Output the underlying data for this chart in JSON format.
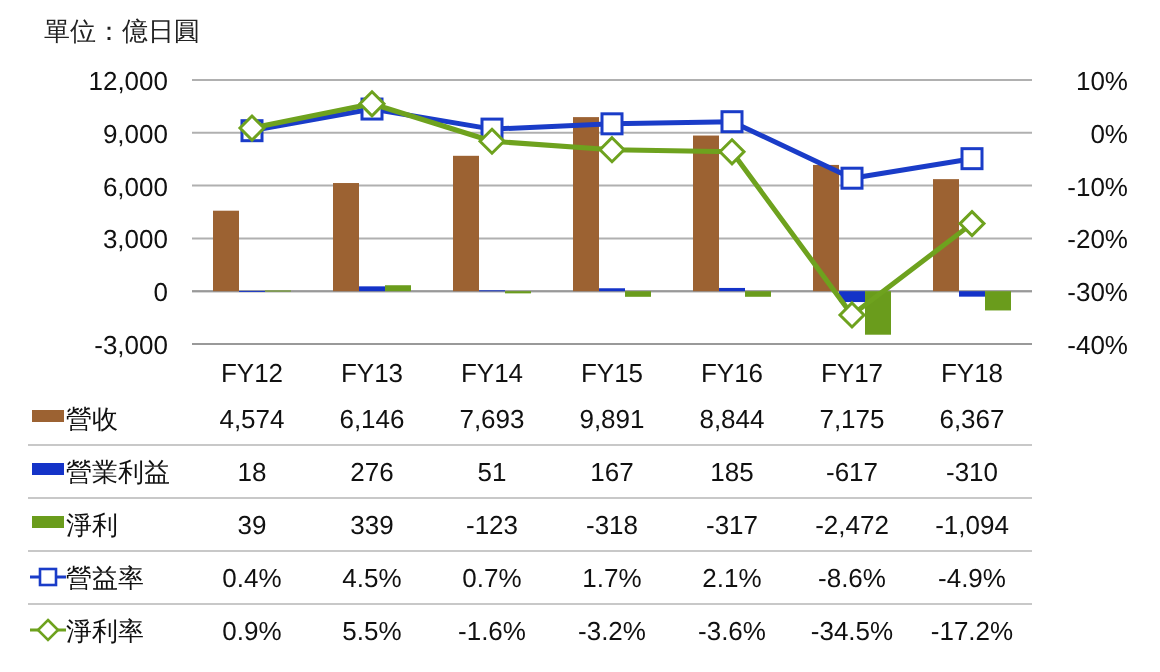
{
  "chart_data": {
    "type": "bar",
    "ylabel": "單位：億日圓",
    "categories": [
      "FY12",
      "FY13",
      "FY14",
      "FY15",
      "FY16",
      "FY17",
      "FY18"
    ],
    "ylim": [
      -3000,
      12000
    ],
    "yticks": [
      {
        "value": -3000,
        "label": "-3,000"
      },
      {
        "value": 0,
        "label": "0"
      },
      {
        "value": 3000,
        "label": "3,000"
      },
      {
        "value": 6000,
        "label": "6,000"
      },
      {
        "value": 9000,
        "label": "9,000"
      },
      {
        "value": 12000,
        "label": "12,000"
      }
    ],
    "y2lim": [
      -40,
      10
    ],
    "y2ticks": [
      {
        "value": -40,
        "label": "-40%"
      },
      {
        "value": -30,
        "label": "-30%"
      },
      {
        "value": -20,
        "label": "-20%"
      },
      {
        "value": -10,
        "label": "-10%"
      },
      {
        "value": 0,
        "label": "0%"
      },
      {
        "value": 10,
        "label": "10%"
      }
    ],
    "grid": "y",
    "legend": "bottom",
    "series": [
      {
        "name": "營收",
        "color": "#9c6232",
        "values": [
          4574,
          6146,
          7693,
          9891,
          8844,
          7175,
          6367
        ],
        "value_labels": [
          "4,574",
          "6,146",
          "7,693",
          "9,891",
          "8,844",
          "7,175",
          "6,367"
        ]
      },
      {
        "name": "營業利益",
        "color": "#1433c8",
        "values": [
          18,
          276,
          51,
          167,
          185,
          -617,
          -310
        ],
        "value_labels": [
          "18",
          "276",
          "51",
          "167",
          "185",
          "-617",
          "-310"
        ]
      },
      {
        "name": "淨利",
        "color": "#6a9c1c",
        "values": [
          39,
          339,
          -123,
          -318,
          -317,
          -2472,
          -1094
        ],
        "value_labels": [
          "39",
          "339",
          "-123",
          "-318",
          "-317",
          "-2,472",
          "-1,094"
        ]
      },
      {
        "name": "營益率",
        "type": "line",
        "axis": "y2",
        "marker": "square",
        "color": "#1a3cc8",
        "values": [
          0.4,
          4.5,
          0.7,
          1.7,
          2.1,
          -8.6,
          -4.9
        ],
        "value_labels": [
          "0.4%",
          "4.5%",
          "0.7%",
          "1.7%",
          "2.1%",
          "-8.6%",
          "-4.9%"
        ]
      },
      {
        "name": "淨利率",
        "type": "line",
        "axis": "y2",
        "marker": "diamond",
        "color": "#6ea21e",
        "values": [
          0.9,
          5.5,
          -1.6,
          -3.2,
          -3.6,
          -34.5,
          -17.2
        ],
        "value_labels": [
          "0.9%",
          "5.5%",
          "-1.6%",
          "-3.2%",
          "-3.6%",
          "-34.5%",
          "-17.2%"
        ]
      }
    ]
  }
}
